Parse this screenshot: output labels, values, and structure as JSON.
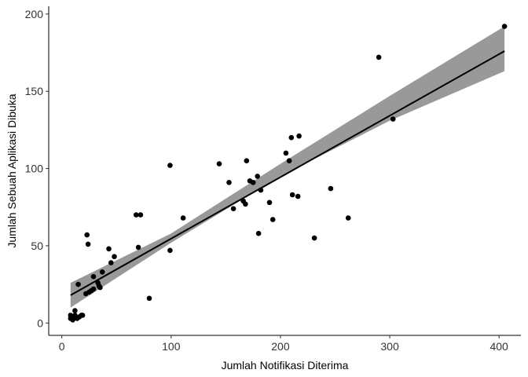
{
  "chart_data": {
    "type": "scatter",
    "title": "",
    "xlabel": "Jumlah Notifikasi Diterima",
    "ylabel": "Jumlah Sebuah Aplikasi Dibuka",
    "xlim": [
      -12,
      420
    ],
    "ylim": [
      -8,
      205
    ],
    "x_ticks": [
      0,
      100,
      200,
      300,
      400
    ],
    "y_ticks": [
      0,
      50,
      100,
      150,
      200
    ],
    "grid": false,
    "legend": "none",
    "points": [
      {
        "x": 8,
        "y": 3
      },
      {
        "x": 8,
        "y": 5
      },
      {
        "x": 10,
        "y": 2
      },
      {
        "x": 11,
        "y": 4
      },
      {
        "x": 12,
        "y": 5
      },
      {
        "x": 12,
        "y": 8
      },
      {
        "x": 14,
        "y": 3
      },
      {
        "x": 15,
        "y": 25
      },
      {
        "x": 16,
        "y": 4
      },
      {
        "x": 18,
        "y": 5
      },
      {
        "x": 19,
        "y": 5
      },
      {
        "x": 22,
        "y": 19
      },
      {
        "x": 23,
        "y": 57
      },
      {
        "x": 24,
        "y": 51
      },
      {
        "x": 25,
        "y": 20
      },
      {
        "x": 27,
        "y": 21
      },
      {
        "x": 29,
        "y": 22
      },
      {
        "x": 29,
        "y": 30
      },
      {
        "x": 33,
        "y": 26
      },
      {
        "x": 34,
        "y": 24
      },
      {
        "x": 35,
        "y": 23
      },
      {
        "x": 37,
        "y": 33
      },
      {
        "x": 43,
        "y": 48
      },
      {
        "x": 45,
        "y": 39
      },
      {
        "x": 48,
        "y": 43
      },
      {
        "x": 68,
        "y": 70
      },
      {
        "x": 70,
        "y": 49
      },
      {
        "x": 72,
        "y": 70
      },
      {
        "x": 80,
        "y": 16
      },
      {
        "x": 99,
        "y": 47
      },
      {
        "x": 99,
        "y": 102
      },
      {
        "x": 111,
        "y": 68
      },
      {
        "x": 144,
        "y": 103
      },
      {
        "x": 153,
        "y": 91
      },
      {
        "x": 157,
        "y": 74
      },
      {
        "x": 166,
        "y": 79
      },
      {
        "x": 168,
        "y": 77
      },
      {
        "x": 169,
        "y": 105
      },
      {
        "x": 172,
        "y": 92
      },
      {
        "x": 175,
        "y": 91
      },
      {
        "x": 179,
        "y": 95
      },
      {
        "x": 180,
        "y": 58
      },
      {
        "x": 182,
        "y": 86
      },
      {
        "x": 190,
        "y": 78
      },
      {
        "x": 193,
        "y": 67
      },
      {
        "x": 205,
        "y": 110
      },
      {
        "x": 208,
        "y": 105
      },
      {
        "x": 210,
        "y": 120
      },
      {
        "x": 211,
        "y": 83
      },
      {
        "x": 216,
        "y": 82
      },
      {
        "x": 217,
        "y": 121
      },
      {
        "x": 231,
        "y": 55
      },
      {
        "x": 246,
        "y": 87
      },
      {
        "x": 262,
        "y": 68
      },
      {
        "x": 290,
        "y": 172
      },
      {
        "x": 303,
        "y": 132
      },
      {
        "x": 405,
        "y": 192
      }
    ],
    "fit_line": {
      "x": [
        8,
        405
      ],
      "y": [
        18,
        176
      ]
    },
    "confidence_band": {
      "x": [
        8,
        100,
        200,
        300,
        405
      ],
      "lower": [
        10,
        52,
        95,
        131,
        163
      ],
      "upper": [
        26,
        58,
        103,
        147,
        192
      ]
    },
    "colors": {
      "points": "#000000",
      "line": "#000000",
      "band": "#999999"
    }
  }
}
